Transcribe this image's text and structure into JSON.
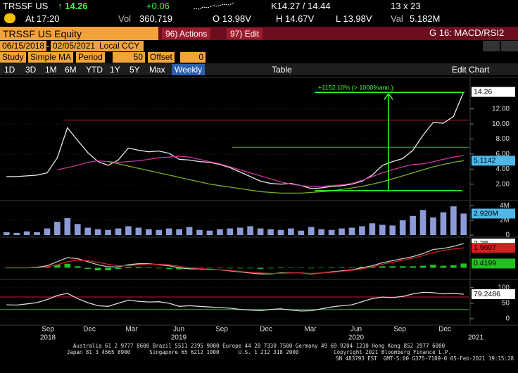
{
  "quote": {
    "ticker": "TRSSF US",
    "last": "↑ 14.26",
    "change": "+0.06",
    "bid_ask": "K14.27 / 14.44",
    "size": "13 x 23",
    "at": "At 17:20",
    "vol_label": "Vol",
    "vol": "360,719",
    "open": "O 13.98V",
    "high": "H 14.67V",
    "low": "L 13.98V",
    "val_label": "Val",
    "val": "5.182M"
  },
  "command": {
    "security": "TRSSF US Equity",
    "actions": "96) Actions",
    "edit": "97) Edit",
    "function": "G 16: MACD/RSI2"
  },
  "settings": {
    "start": "06/15/2018",
    "end": "02/05/2021",
    "currency": "Local CCY",
    "study_label": "Study",
    "study": "Simple MA",
    "period_label": "Period",
    "period": "50",
    "offset_label": "Offset",
    "offset": "0"
  },
  "toolbar": {
    "ranges": [
      "1D",
      "3D",
      "1M",
      "6M",
      "YTD",
      "1Y",
      "5Y",
      "Max"
    ],
    "frequency": "Weekly",
    "table": "Table",
    "edit_chart": "Edit Chart"
  },
  "x_axis": {
    "months": [
      "Sep",
      "Dec",
      "Mar",
      "Jun",
      "Sep",
      "Dec",
      "Mar",
      "Jun",
      "Sep",
      "Dec"
    ],
    "years": [
      "2018",
      "2019",
      "2020",
      "2021"
    ]
  },
  "chart_data": [
    {
      "type": "line",
      "ylim": [
        0,
        16
      ],
      "yticks": [
        {
          "value": 2,
          "label": "2.00"
        },
        {
          "value": 4,
          "label": "4.00"
        },
        {
          "value": 6,
          "label": "6.00"
        },
        {
          "value": 8,
          "label": "8.00"
        },
        {
          "value": 10,
          "label": "10.00"
        },
        {
          "value": 12,
          "label": "12.00"
        }
      ],
      "series": [
        {
          "color": "#e8e8e8",
          "tag": true,
          "tag_color": "#ffffff",
          "values": [
            3.0,
            3.0,
            3.1,
            3.2,
            3.5,
            5.5,
            9.5,
            7.8,
            6.2,
            5.0,
            4.5,
            5.2,
            6.8,
            6.5,
            6.3,
            6.4,
            6.1,
            5.3,
            5.2,
            5.0,
            4.9,
            4.6,
            4.2,
            3.6,
            3.0,
            2.4,
            2.1,
            2.0,
            2.1,
            1.8,
            1.4,
            1.5,
            1.7,
            1.8,
            2.0,
            2.4,
            3.2,
            4.5,
            5.0,
            5.4,
            6.5,
            8.5,
            10.2,
            10.1,
            11.0,
            14.26
          ]
        },
        {
          "color": "#d0309a",
          "values": [
            null,
            null,
            null,
            null,
            null,
            3.9,
            4.2,
            4.5,
            4.9,
            5.1,
            5.0,
            4.9,
            5.0,
            5.1,
            5.3,
            5.5,
            5.6,
            5.7,
            5.6,
            5.3,
            5.0,
            4.7,
            4.3,
            3.9,
            3.5,
            3.1,
            2.7,
            2.3,
            2.0,
            1.8,
            1.7,
            1.7,
            1.8,
            1.9,
            2.1,
            2.5,
            3.0,
            3.5,
            3.9,
            4.3,
            4.6,
            4.7,
            5.0,
            5.3,
            5.6,
            5.8
          ]
        },
        {
          "color": "#7cae20",
          "tag": true,
          "tag_color": "#4fb8e8",
          "values": [
            null,
            null,
            null,
            null,
            null,
            null,
            null,
            null,
            null,
            null,
            5.0,
            4.7,
            4.4,
            4.1,
            3.8,
            3.5,
            3.2,
            2.9,
            2.6,
            2.3,
            2.0,
            1.8,
            1.6,
            1.4,
            1.2,
            1.0,
            0.9,
            0.8,
            0.8,
            0.8,
            0.9,
            1.0,
            1.1,
            1.3,
            1.5,
            1.7,
            2.0,
            2.3,
            2.7,
            3.1,
            3.5,
            3.9,
            4.3,
            4.6,
            4.9,
            5.1142
          ]
        }
      ],
      "hlines": [
        {
          "value": 10.5,
          "color": "#c0202a"
        },
        {
          "value": 6.9,
          "color": "#3cb043"
        }
      ],
      "measure": {
        "label": "+1152.10% (> 1000%ann.)",
        "from": 1.13,
        "to": 14.2,
        "color": "#33ff33"
      }
    },
    {
      "type": "bar",
      "ylim": [
        0,
        4.4
      ],
      "yticks": [
        0,
        {
          "value": 2,
          "label": "2M"
        },
        {
          "value": 4,
          "label": "4M"
        }
      ],
      "series": [
        {
          "color": "#8c9ad6",
          "tag": true,
          "tag_color": "#4fb8e8",
          "last_label": "2.920M",
          "values": [
            0.4,
            0.3,
            0.5,
            0.4,
            0.9,
            1.8,
            2.3,
            1.5,
            1.0,
            0.8,
            0.7,
            0.9,
            1.2,
            1.0,
            0.8,
            0.7,
            0.9,
            0.8,
            1.1,
            0.7,
            0.6,
            0.8,
            0.9,
            1.0,
            1.2,
            0.9,
            0.8,
            0.7,
            0.9,
            0.6,
            1.1,
            0.8,
            0.7,
            0.9,
            1.0,
            1.2,
            1.6,
            1.4,
            1.3,
            2.0,
            2.6,
            3.4,
            2.4,
            3.1,
            3.9,
            2.92
          ]
        }
      ]
    },
    {
      "type": "line",
      "ylim": [
        -1,
        2.8
      ],
      "series": [
        {
          "type": "bar",
          "color": "#22c022",
          "tag": true,
          "tag_color": "#22c022",
          "values": [
            0,
            0,
            0,
            0.05,
            0.1,
            0.3,
            0.4,
            0.15,
            -0.1,
            -0.25,
            -0.25,
            -0.1,
            0.1,
            0.1,
            0.05,
            -0.05,
            -0.1,
            -0.15,
            -0.1,
            -0.05,
            -0.05,
            0,
            -0.05,
            -0.05,
            -0.05,
            -0.1,
            -0.05,
            0.05,
            0,
            0,
            -0.05,
            0,
            0.05,
            0.05,
            0.05,
            0.1,
            0.1,
            0.15,
            0.15,
            0.15,
            0.15,
            0.2,
            0.3,
            0.2,
            0.25,
            0.4199
          ]
        },
        {
          "color": "#c8c8c8",
          "tag": true,
          "tag_color": "#ffffff",
          "values": [
            0.0,
            0.0,
            0.0,
            0.05,
            0.2,
            0.6,
            1.0,
            0.9,
            0.6,
            0.3,
            0.1,
            0.1,
            0.3,
            0.4,
            0.4,
            0.3,
            0.2,
            0.0,
            -0.1,
            -0.1,
            -0.2,
            -0.2,
            -0.3,
            -0.4,
            -0.5,
            -0.6,
            -0.6,
            -0.5,
            -0.5,
            -0.5,
            -0.6,
            -0.5,
            -0.4,
            -0.3,
            -0.2,
            0.0,
            0.2,
            0.5,
            0.7,
            0.9,
            1.1,
            1.4,
            1.8,
            1.9,
            2.1,
            2.38
          ]
        },
        {
          "color": "#d02020",
          "tag": true,
          "tag_color": "#d02020",
          "values": [
            0.0,
            0.0,
            0.0,
            0.0,
            0.1,
            0.3,
            0.6,
            0.75,
            0.7,
            0.55,
            0.35,
            0.2,
            0.2,
            0.3,
            0.35,
            0.35,
            0.3,
            0.15,
            0.0,
            -0.05,
            -0.15,
            -0.2,
            -0.25,
            -0.35,
            -0.45,
            -0.5,
            -0.55,
            -0.55,
            -0.5,
            -0.5,
            -0.55,
            -0.5,
            -0.45,
            -0.35,
            -0.25,
            -0.1,
            0.1,
            0.35,
            0.55,
            0.75,
            0.95,
            1.2,
            1.5,
            1.7,
            1.85,
            1.9607
          ]
        }
      ]
    },
    {
      "type": "line",
      "ylim": [
        -16,
        120
      ],
      "yticks": [
        0,
        50,
        100
      ],
      "series": [
        {
          "color": "#d8d8d8",
          "tag": true,
          "tag_color": "#ffffff",
          "values": [
            45,
            44,
            48,
            52,
            62,
            75,
            82,
            65,
            52,
            42,
            40,
            50,
            60,
            56,
            54,
            55,
            50,
            40,
            42,
            40,
            38,
            36,
            34,
            30,
            28,
            26,
            30,
            32,
            28,
            25,
            26,
            32,
            38,
            42,
            45,
            55,
            65,
            70,
            68,
            72,
            80,
            85,
            84,
            80,
            82,
            79.2486
          ]
        }
      ],
      "hlines": [
        {
          "value": 70,
          "color": "#c0202a"
        },
        {
          "value": 30,
          "color": "#3cb043"
        }
      ]
    }
  ],
  "footer": [
    "Australia 61 2 9777 8600 Brazil 5511 2395 9000 Europe 44 20 7330 7500 Germany 49 69 9204 1210 Hong Kong 852 2977 6000",
    "Japan 81 3 4565 8900      Singapore 65 6212 1000      U.S. 1 212 318 2000           Copyright 2021 Bloomberg Finance L.P.",
    "SN 483793 EST  GMT-5:00 G375-7109-0 05-Feb-2021 19:15:28"
  ]
}
